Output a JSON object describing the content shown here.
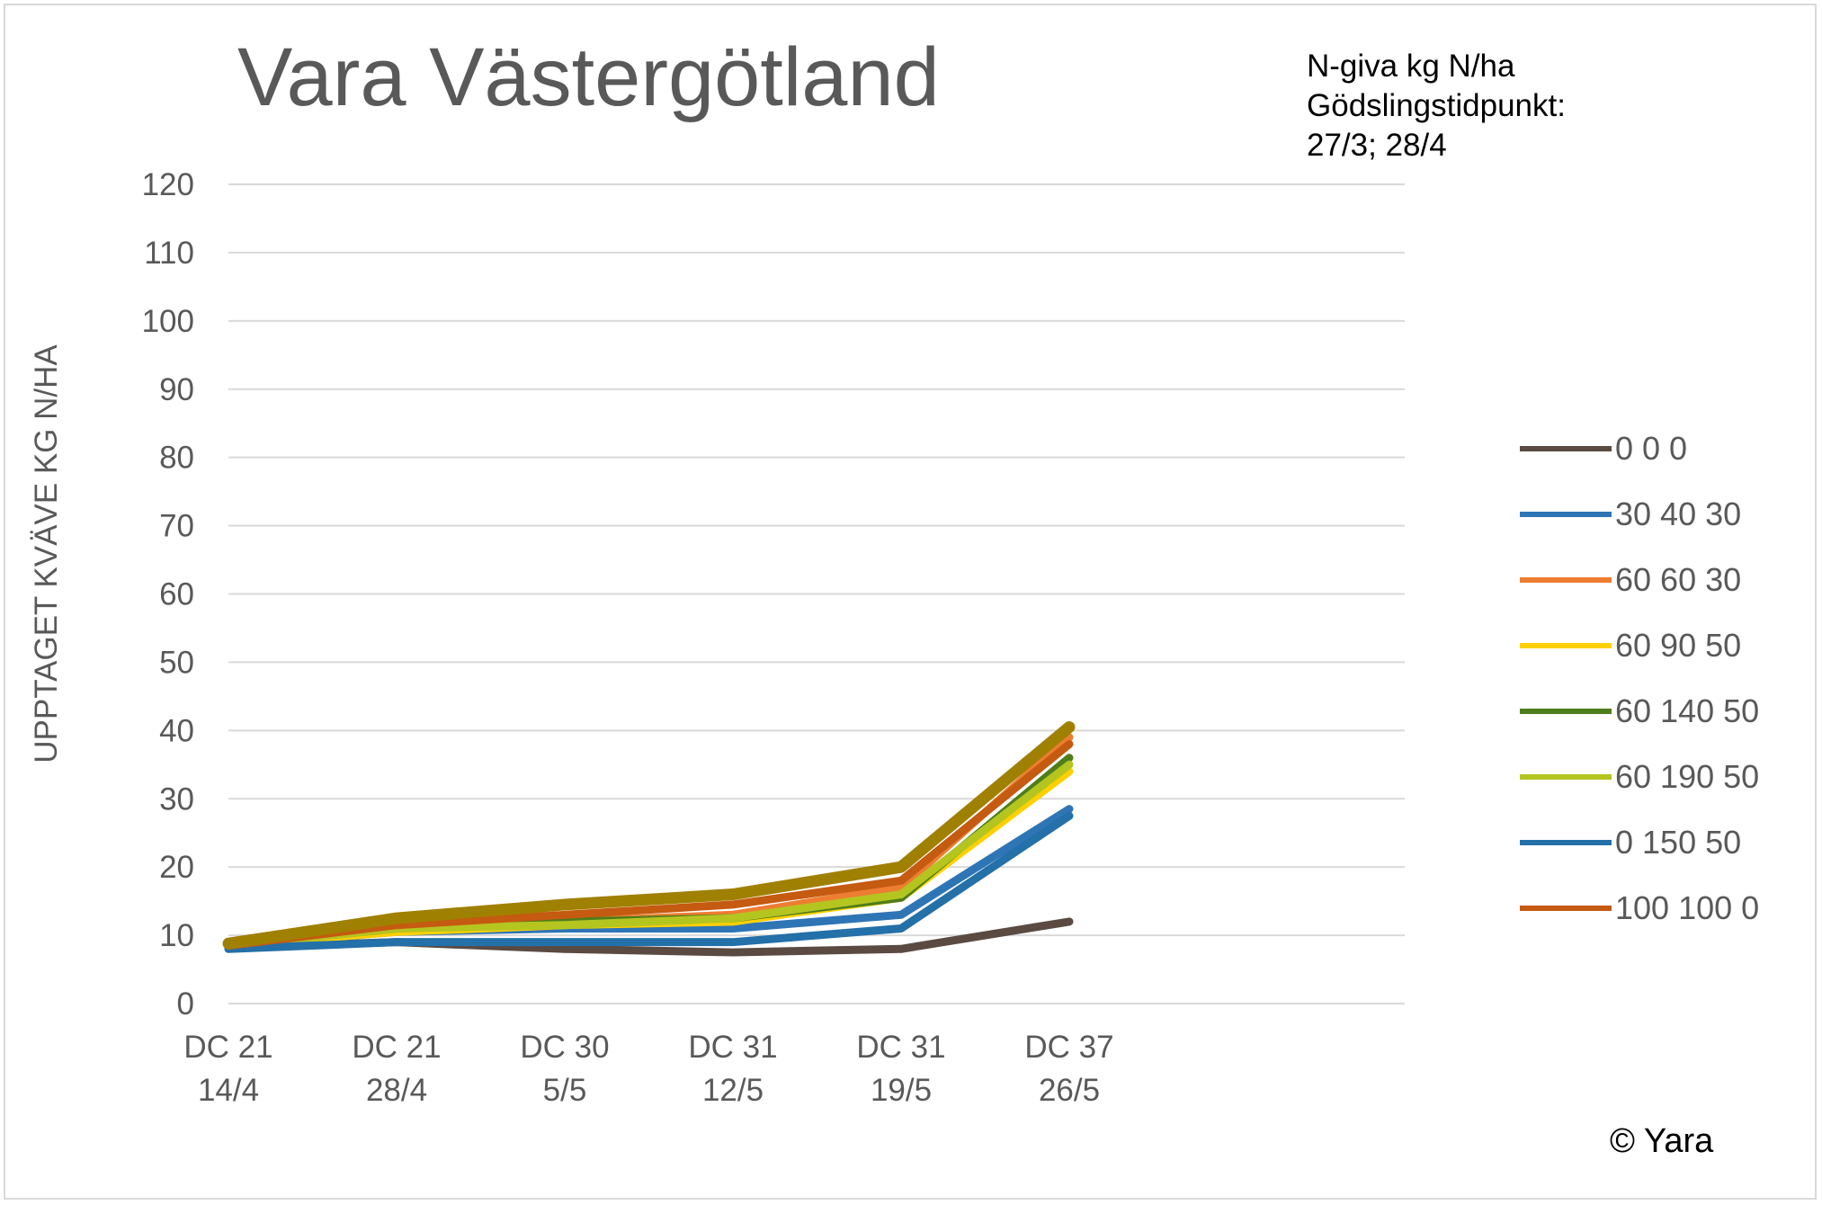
{
  "header": {
    "title": "Vara Västergötland",
    "note_lines": [
      "N-giva kg N/ha",
      "Gödslingstidpunkt:",
      "27/3; 28/4"
    ],
    "copyright": "© Yara"
  },
  "chart_data": {
    "type": "line",
    "title": "Vara Västergötland",
    "xlabel": "",
    "ylabel": "UPPTAGET KVÄVE KG N/HA",
    "ylim": [
      0,
      120
    ],
    "ytick_step": 10,
    "grid": true,
    "legend_position": "right",
    "categories": [
      [
        "DC 21",
        "14/4"
      ],
      [
        "DC 21",
        "28/4"
      ],
      [
        "DC 30",
        "5/5"
      ],
      [
        "DC 31",
        "12/5"
      ],
      [
        "DC 31",
        "19/5"
      ],
      [
        "DC 37",
        "26/5"
      ]
    ],
    "series": [
      {
        "name": "0 0 0",
        "color": "#5a4a42",
        "values": [
          8.2,
          9.0,
          8.0,
          7.5,
          8.0,
          12.0
        ]
      },
      {
        "name": "30 40 30",
        "color": "#2e75b6",
        "values": [
          8.5,
          10.5,
          11.0,
          11.0,
          13.0,
          28.5
        ]
      },
      {
        "name": "60 60 30",
        "color": "#ed7d31",
        "values": [
          8.5,
          11.5,
          12.0,
          13.0,
          17.0,
          39.0
        ]
      },
      {
        "name": "60 90 50",
        "color": "#ffd000",
        "values": [
          8.5,
          10.5,
          11.5,
          12.0,
          15.5,
          34.0
        ]
      },
      {
        "name": "60 140 50",
        "color": "#4e7d1a",
        "values": [
          8.5,
          11.0,
          12.0,
          12.5,
          15.5,
          36.0
        ]
      },
      {
        "name": "60 190 50",
        "color": "#b4c520",
        "values": [
          8.5,
          11.0,
          11.5,
          12.5,
          16.0,
          35.0
        ]
      },
      {
        "name": "0 150 50",
        "color": "#2470a8",
        "values": [
          8.0,
          9.0,
          9.0,
          9.0,
          11.0,
          27.5
        ]
      },
      {
        "name": "100 100 0",
        "color": "#c55a11",
        "values": [
          8.5,
          11.5,
          13.0,
          14.5,
          18.0,
          38.0
        ]
      },
      {
        "name": "",
        "color": "#a08000",
        "values": [
          8.8,
          12.5,
          14.5,
          16.0,
          20.0,
          40.5
        ]
      }
    ]
  }
}
